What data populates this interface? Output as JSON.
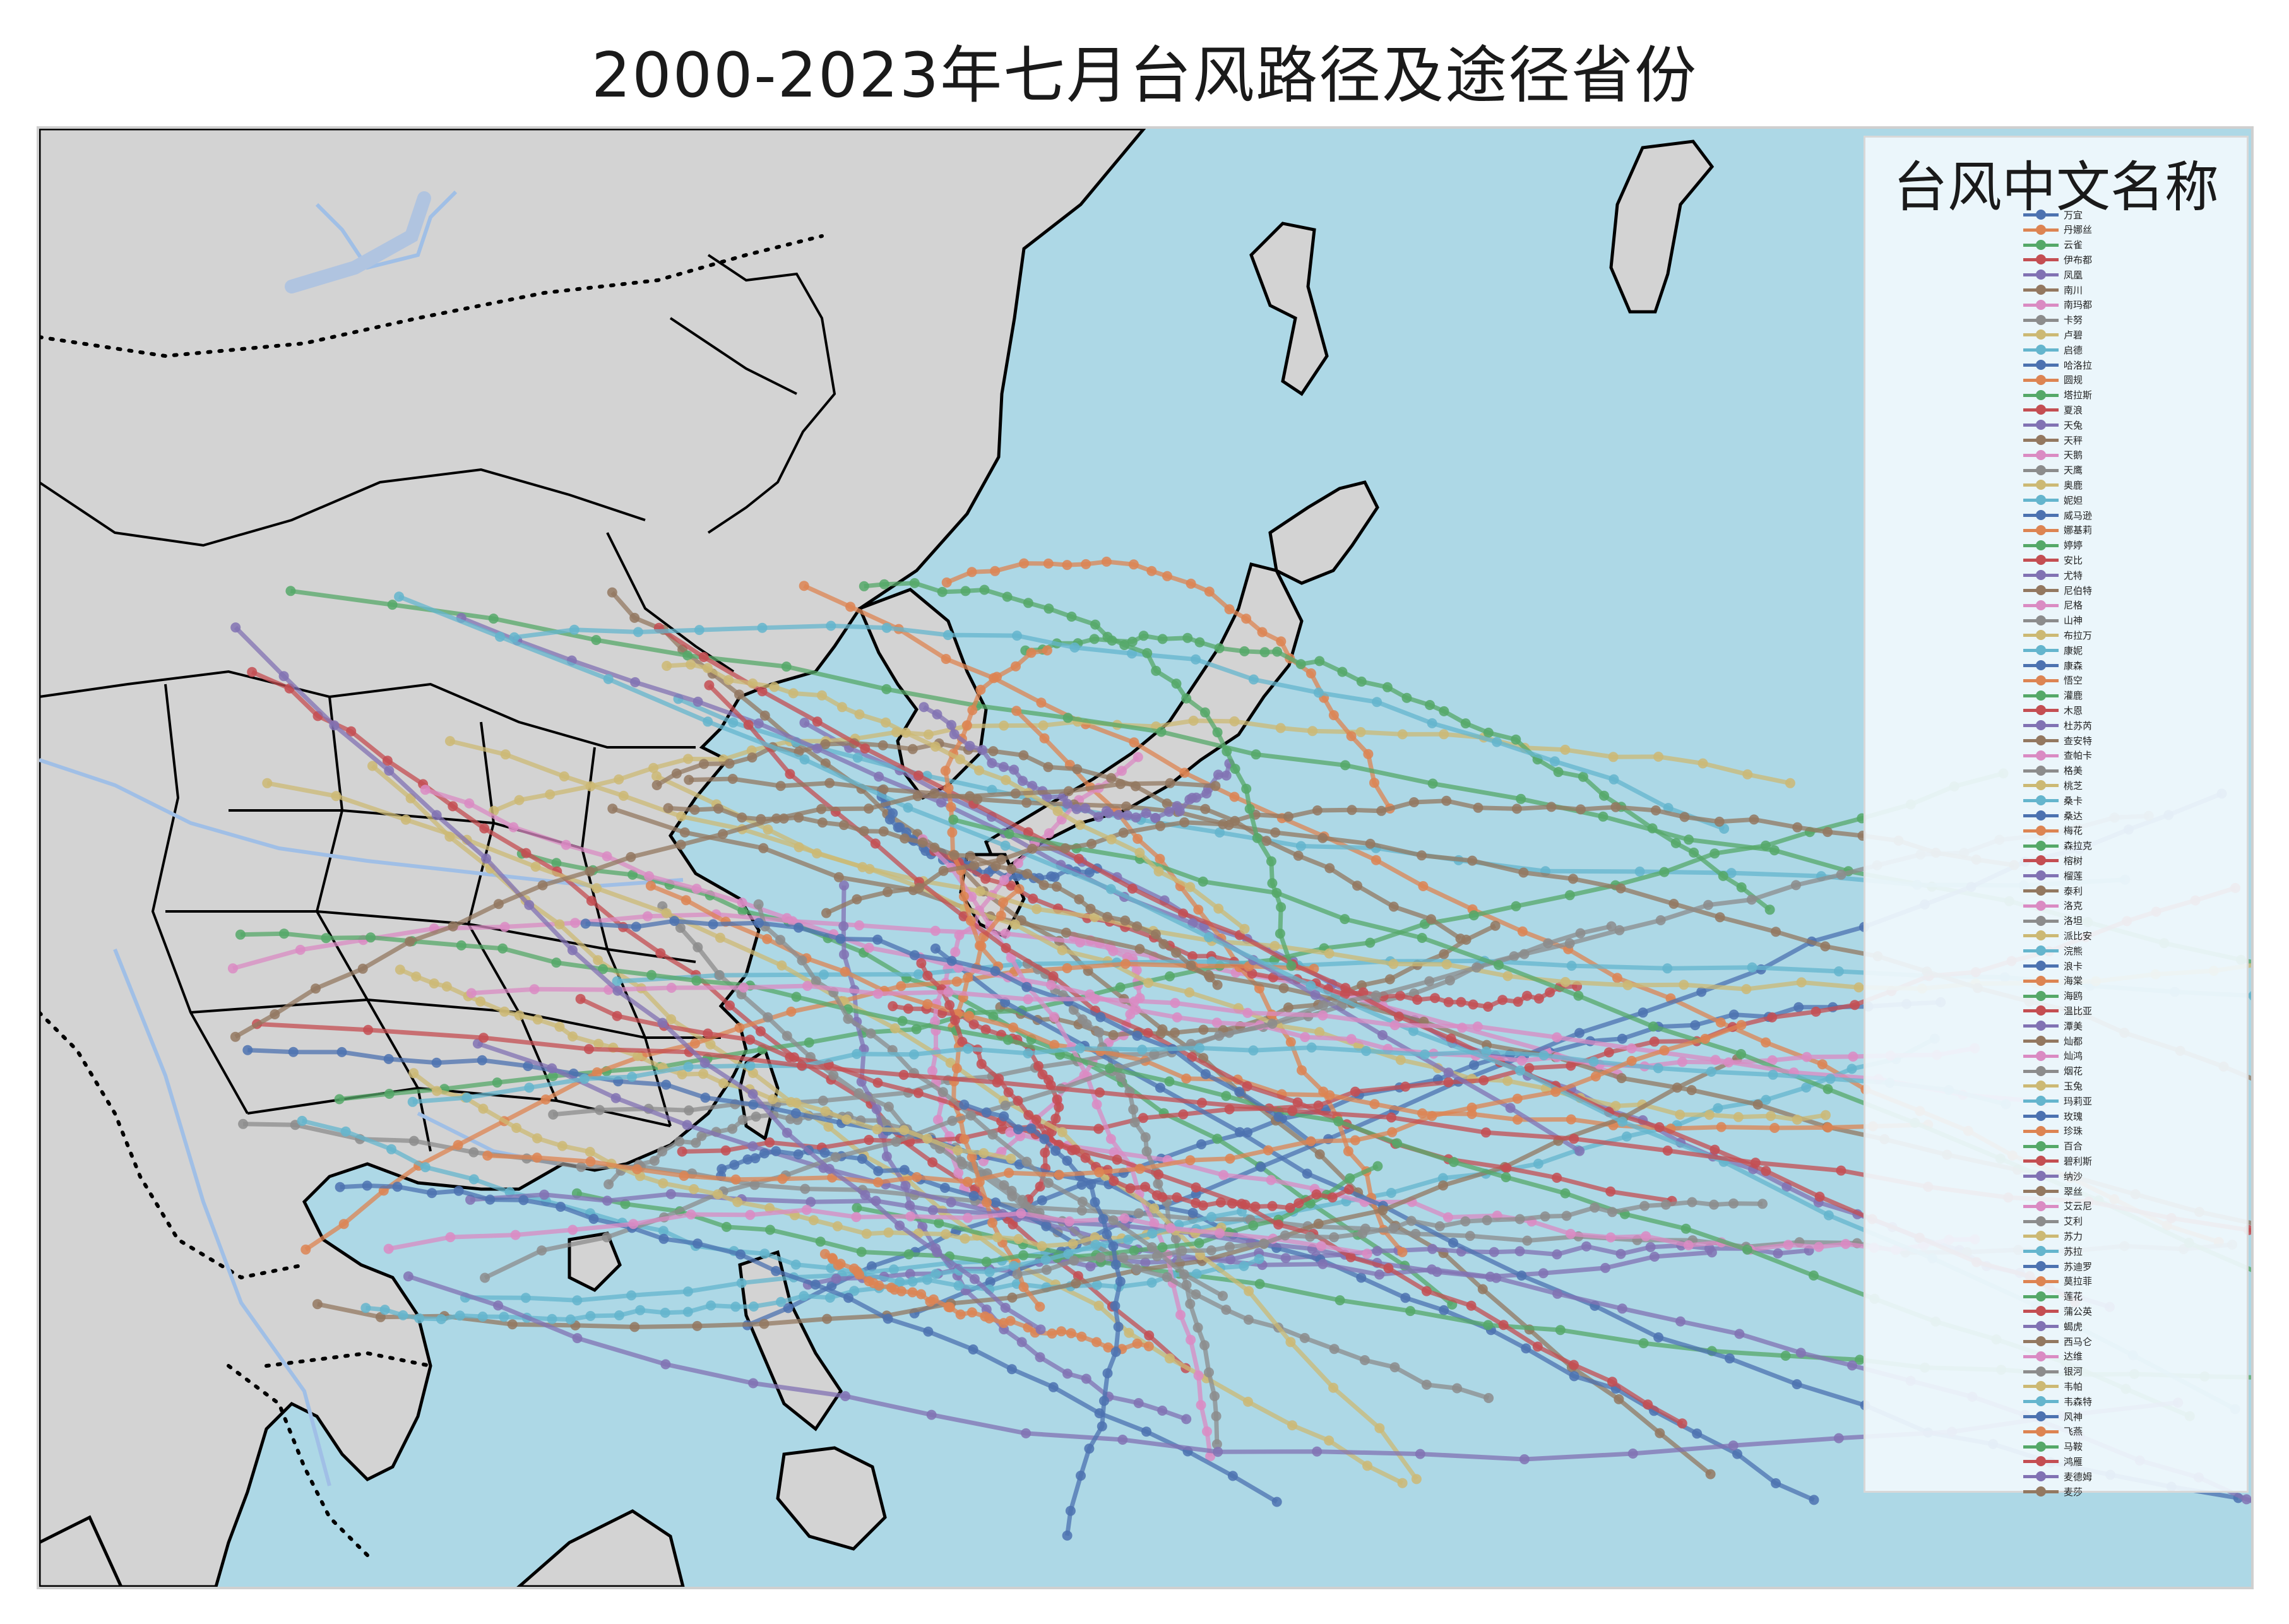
{
  "title": "2000-2023年七月台风路径及途径省份",
  "legend": {
    "title": "台风中文名称",
    "items": [
      {
        "name": "万宜",
        "color": "#4c72b0"
      },
      {
        "name": "丹娜丝",
        "color": "#dd8452"
      },
      {
        "name": "云雀",
        "color": "#55a868"
      },
      {
        "name": "伊布都",
        "color": "#c44e52"
      },
      {
        "name": "凤凰",
        "color": "#8172b3"
      },
      {
        "name": "南川",
        "color": "#937860"
      },
      {
        "name": "南玛都",
        "color": "#da8bc3"
      },
      {
        "name": "卡努",
        "color": "#8c8c8c"
      },
      {
        "name": "卢碧",
        "color": "#ccb974"
      },
      {
        "name": "启德",
        "color": "#64b5cd"
      },
      {
        "name": "哈洛拉",
        "color": "#4c72b0"
      },
      {
        "name": "圆规",
        "color": "#dd8452"
      },
      {
        "name": "塔拉斯",
        "color": "#55a868"
      },
      {
        "name": "夏浪",
        "color": "#c44e52"
      },
      {
        "name": "天兔",
        "color": "#8172b3"
      },
      {
        "name": "天秤",
        "color": "#937860"
      },
      {
        "name": "天鹅",
        "color": "#da8bc3"
      },
      {
        "name": "天鹰",
        "color": "#8c8c8c"
      },
      {
        "name": "奥鹿",
        "color": "#ccb974"
      },
      {
        "name": "妮妲",
        "color": "#64b5cd"
      },
      {
        "name": "威马逊",
        "color": "#4c72b0"
      },
      {
        "name": "娜基莉",
        "color": "#dd8452"
      },
      {
        "name": "婷婷",
        "color": "#55a868"
      },
      {
        "name": "安比",
        "color": "#c44e52"
      },
      {
        "name": "尤特",
        "color": "#8172b3"
      },
      {
        "name": "尼伯特",
        "color": "#937860"
      },
      {
        "name": "尼格",
        "color": "#da8bc3"
      },
      {
        "name": "山神",
        "color": "#8c8c8c"
      },
      {
        "name": "布拉万",
        "color": "#ccb974"
      },
      {
        "name": "康妮",
        "color": "#64b5cd"
      },
      {
        "name": "康森",
        "color": "#4c72b0"
      },
      {
        "name": "悟空",
        "color": "#dd8452"
      },
      {
        "name": "灌鹿",
        "color": "#55a868"
      },
      {
        "name": "木恩",
        "color": "#c44e52"
      },
      {
        "name": "杜苏芮",
        "color": "#8172b3"
      },
      {
        "name": "查安特",
        "color": "#937860"
      },
      {
        "name": "查帕卡",
        "color": "#da8bc3"
      },
      {
        "name": "格美",
        "color": "#8c8c8c"
      },
      {
        "name": "桃芝",
        "color": "#ccb974"
      },
      {
        "name": "桑卡",
        "color": "#64b5cd"
      },
      {
        "name": "桑达",
        "color": "#4c72b0"
      },
      {
        "name": "梅花",
        "color": "#dd8452"
      },
      {
        "name": "森拉克",
        "color": "#55a868"
      },
      {
        "name": "榕树",
        "color": "#c44e52"
      },
      {
        "name": "榴莲",
        "color": "#8172b3"
      },
      {
        "name": "泰利",
        "color": "#937860"
      },
      {
        "name": "洛克",
        "color": "#da8bc3"
      },
      {
        "name": "洛坦",
        "color": "#8c8c8c"
      },
      {
        "name": "派比安",
        "color": "#ccb974"
      },
      {
        "name": "浣熊",
        "color": "#64b5cd"
      },
      {
        "name": "浪卡",
        "color": "#4c72b0"
      },
      {
        "name": "海棠",
        "color": "#dd8452"
      },
      {
        "name": "海鸥",
        "color": "#55a868"
      },
      {
        "name": "温比亚",
        "color": "#c44e52"
      },
      {
        "name": "潭美",
        "color": "#8172b3"
      },
      {
        "name": "灿都",
        "color": "#937860"
      },
      {
        "name": "灿鸿",
        "color": "#da8bc3"
      },
      {
        "name": "烟花",
        "color": "#8c8c8c"
      },
      {
        "name": "玉兔",
        "color": "#ccb974"
      },
      {
        "name": "玛莉亚",
        "color": "#64b5cd"
      },
      {
        "name": "玫瑰",
        "color": "#4c72b0"
      },
      {
        "name": "珍珠",
        "color": "#dd8452"
      },
      {
        "name": "百合",
        "color": "#55a868"
      },
      {
        "name": "碧利斯",
        "color": "#c44e52"
      },
      {
        "name": "纳沙",
        "color": "#8172b3"
      },
      {
        "name": "翠丝",
        "color": "#937860"
      },
      {
        "name": "艾云尼",
        "color": "#da8bc3"
      },
      {
        "name": "艾利",
        "color": "#8c8c8c"
      },
      {
        "name": "苏力",
        "color": "#ccb974"
      },
      {
        "name": "苏拉",
        "color": "#64b5cd"
      },
      {
        "name": "苏迪罗",
        "color": "#4c72b0"
      },
      {
        "name": "莫拉菲",
        "color": "#dd8452"
      },
      {
        "name": "莲花",
        "color": "#55a868"
      },
      {
        "name": "蒲公英",
        "color": "#c44e52"
      },
      {
        "name": "蝎虎",
        "color": "#8172b3"
      },
      {
        "name": "西马仑",
        "color": "#937860"
      },
      {
        "name": "达维",
        "color": "#da8bc3"
      },
      {
        "name": "银河",
        "color": "#8c8c8c"
      },
      {
        "name": "韦帕",
        "color": "#ccb974"
      },
      {
        "name": "韦森特",
        "color": "#64b5cd"
      },
      {
        "name": "风神",
        "color": "#4c72b0"
      },
      {
        "name": "飞燕",
        "color": "#dd8452"
      },
      {
        "name": "马鞍",
        "color": "#55a868"
      },
      {
        "name": "鸿雁",
        "color": "#c44e52"
      },
      {
        "name": "麦德姆",
        "color": "#8172b3"
      },
      {
        "name": "麦莎",
        "color": "#937860"
      }
    ]
  },
  "map": {
    "ocean_color": "#add8e6",
    "land_color": "#d3d3d3",
    "border_color": "#000000",
    "river_color": "#a0bfe6"
  }
}
